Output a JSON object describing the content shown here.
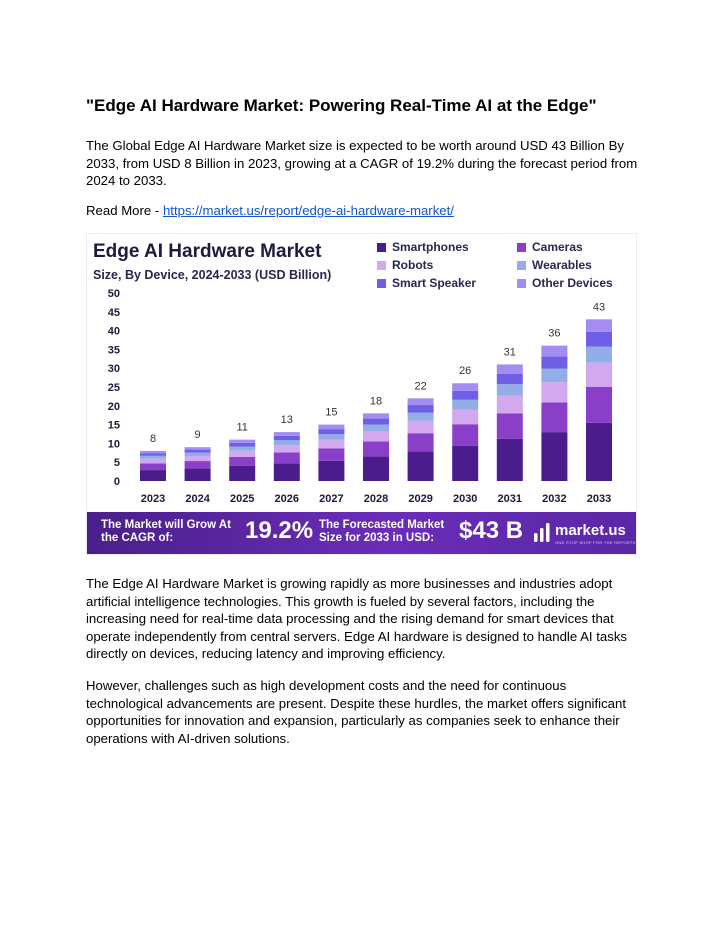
{
  "doc": {
    "title": "\"Edge AI Hardware Market: Powering Real-Time AI at the Edge\"",
    "intro": "The Global Edge AI Hardware Market size is expected to be worth around USD 43 Billion By 2033, from USD 8 Billion in 2023, growing at a CAGR of 19.2% during the forecast period from 2024 to 2033.",
    "read_more_label": "Read More - ",
    "read_more_link": " https://market.us/report/edge-ai-hardware-market/",
    "para2": "The Edge AI Hardware Market is growing rapidly as more businesses and industries adopt artificial intelligence technologies. This growth is fueled by several factors, including the increasing need for real-time data processing and the rising demand for smart devices that operate independently from central servers. Edge AI hardware is designed to handle AI tasks directly on devices, reducing latency and improving efficiency.",
    "para3": "However, challenges such as high development costs and the need for continuous technological advancements are present. Despite these hurdles, the market offers significant opportunities for innovation and expansion, particularly as companies seek to enhance their operations with AI-driven solutions."
  },
  "banner": {
    "cagr_label": "The Market will Grow At the CAGR of:",
    "cagr_value": "19.2%",
    "forecast_label": "The Forecasted Market Size for 2033 in USD:",
    "forecast_value": "$43 B",
    "logo_text": "market.us",
    "logo_tagline": "ONE STOP SHOP FOR THE REPORTS"
  },
  "chart_data": {
    "type": "bar",
    "stacked": true,
    "title": "Edge AI Hardware Market",
    "subtitle": "Size, By Device, 2024-2033 (USD Billion)",
    "categories": [
      "2023",
      "2024",
      "2025",
      "2026",
      "2027",
      "2028",
      "2029",
      "2030",
      "2031",
      "2032",
      "2033"
    ],
    "totals": [
      8,
      9,
      11,
      13,
      15,
      18,
      22,
      26,
      31,
      36,
      43
    ],
    "ylim": [
      0,
      50
    ],
    "yticks": [
      0,
      5,
      10,
      15,
      20,
      25,
      30,
      35,
      40,
      45,
      50
    ],
    "legend_position": "top-right",
    "series": [
      {
        "name": "Smartphones",
        "color": "#4b1d8c",
        "values": [
          2.9,
          3.3,
          4.0,
          4.7,
          5.4,
          6.5,
          7.9,
          9.4,
          11.2,
          13.0,
          15.5
        ]
      },
      {
        "name": "Cameras",
        "color": "#8a3fc9",
        "values": [
          1.8,
          2.0,
          2.4,
          2.9,
          3.3,
          4.0,
          4.8,
          5.7,
          6.8,
          7.9,
          9.5
        ]
      },
      {
        "name": "Robots",
        "color": "#d2a9ee",
        "values": [
          1.2,
          1.35,
          1.65,
          1.95,
          2.25,
          2.7,
          3.3,
          3.9,
          4.65,
          5.4,
          6.45
        ]
      },
      {
        "name": "Wearables",
        "color": "#93aee6",
        "values": [
          0.8,
          0.9,
          1.1,
          1.3,
          1.5,
          1.8,
          2.2,
          2.6,
          3.1,
          3.6,
          4.3
        ]
      },
      {
        "name": "Smart Speaker",
        "color": "#6f5fe6",
        "values": [
          0.7,
          0.8,
          1.0,
          1.15,
          1.35,
          1.6,
          2.0,
          2.35,
          2.8,
          3.25,
          3.9
        ]
      },
      {
        "name": "Other Devices",
        "color": "#a48df2",
        "values": [
          0.6,
          0.65,
          0.85,
          1.0,
          1.2,
          1.4,
          1.8,
          2.05,
          2.45,
          2.85,
          3.35
        ]
      }
    ]
  }
}
